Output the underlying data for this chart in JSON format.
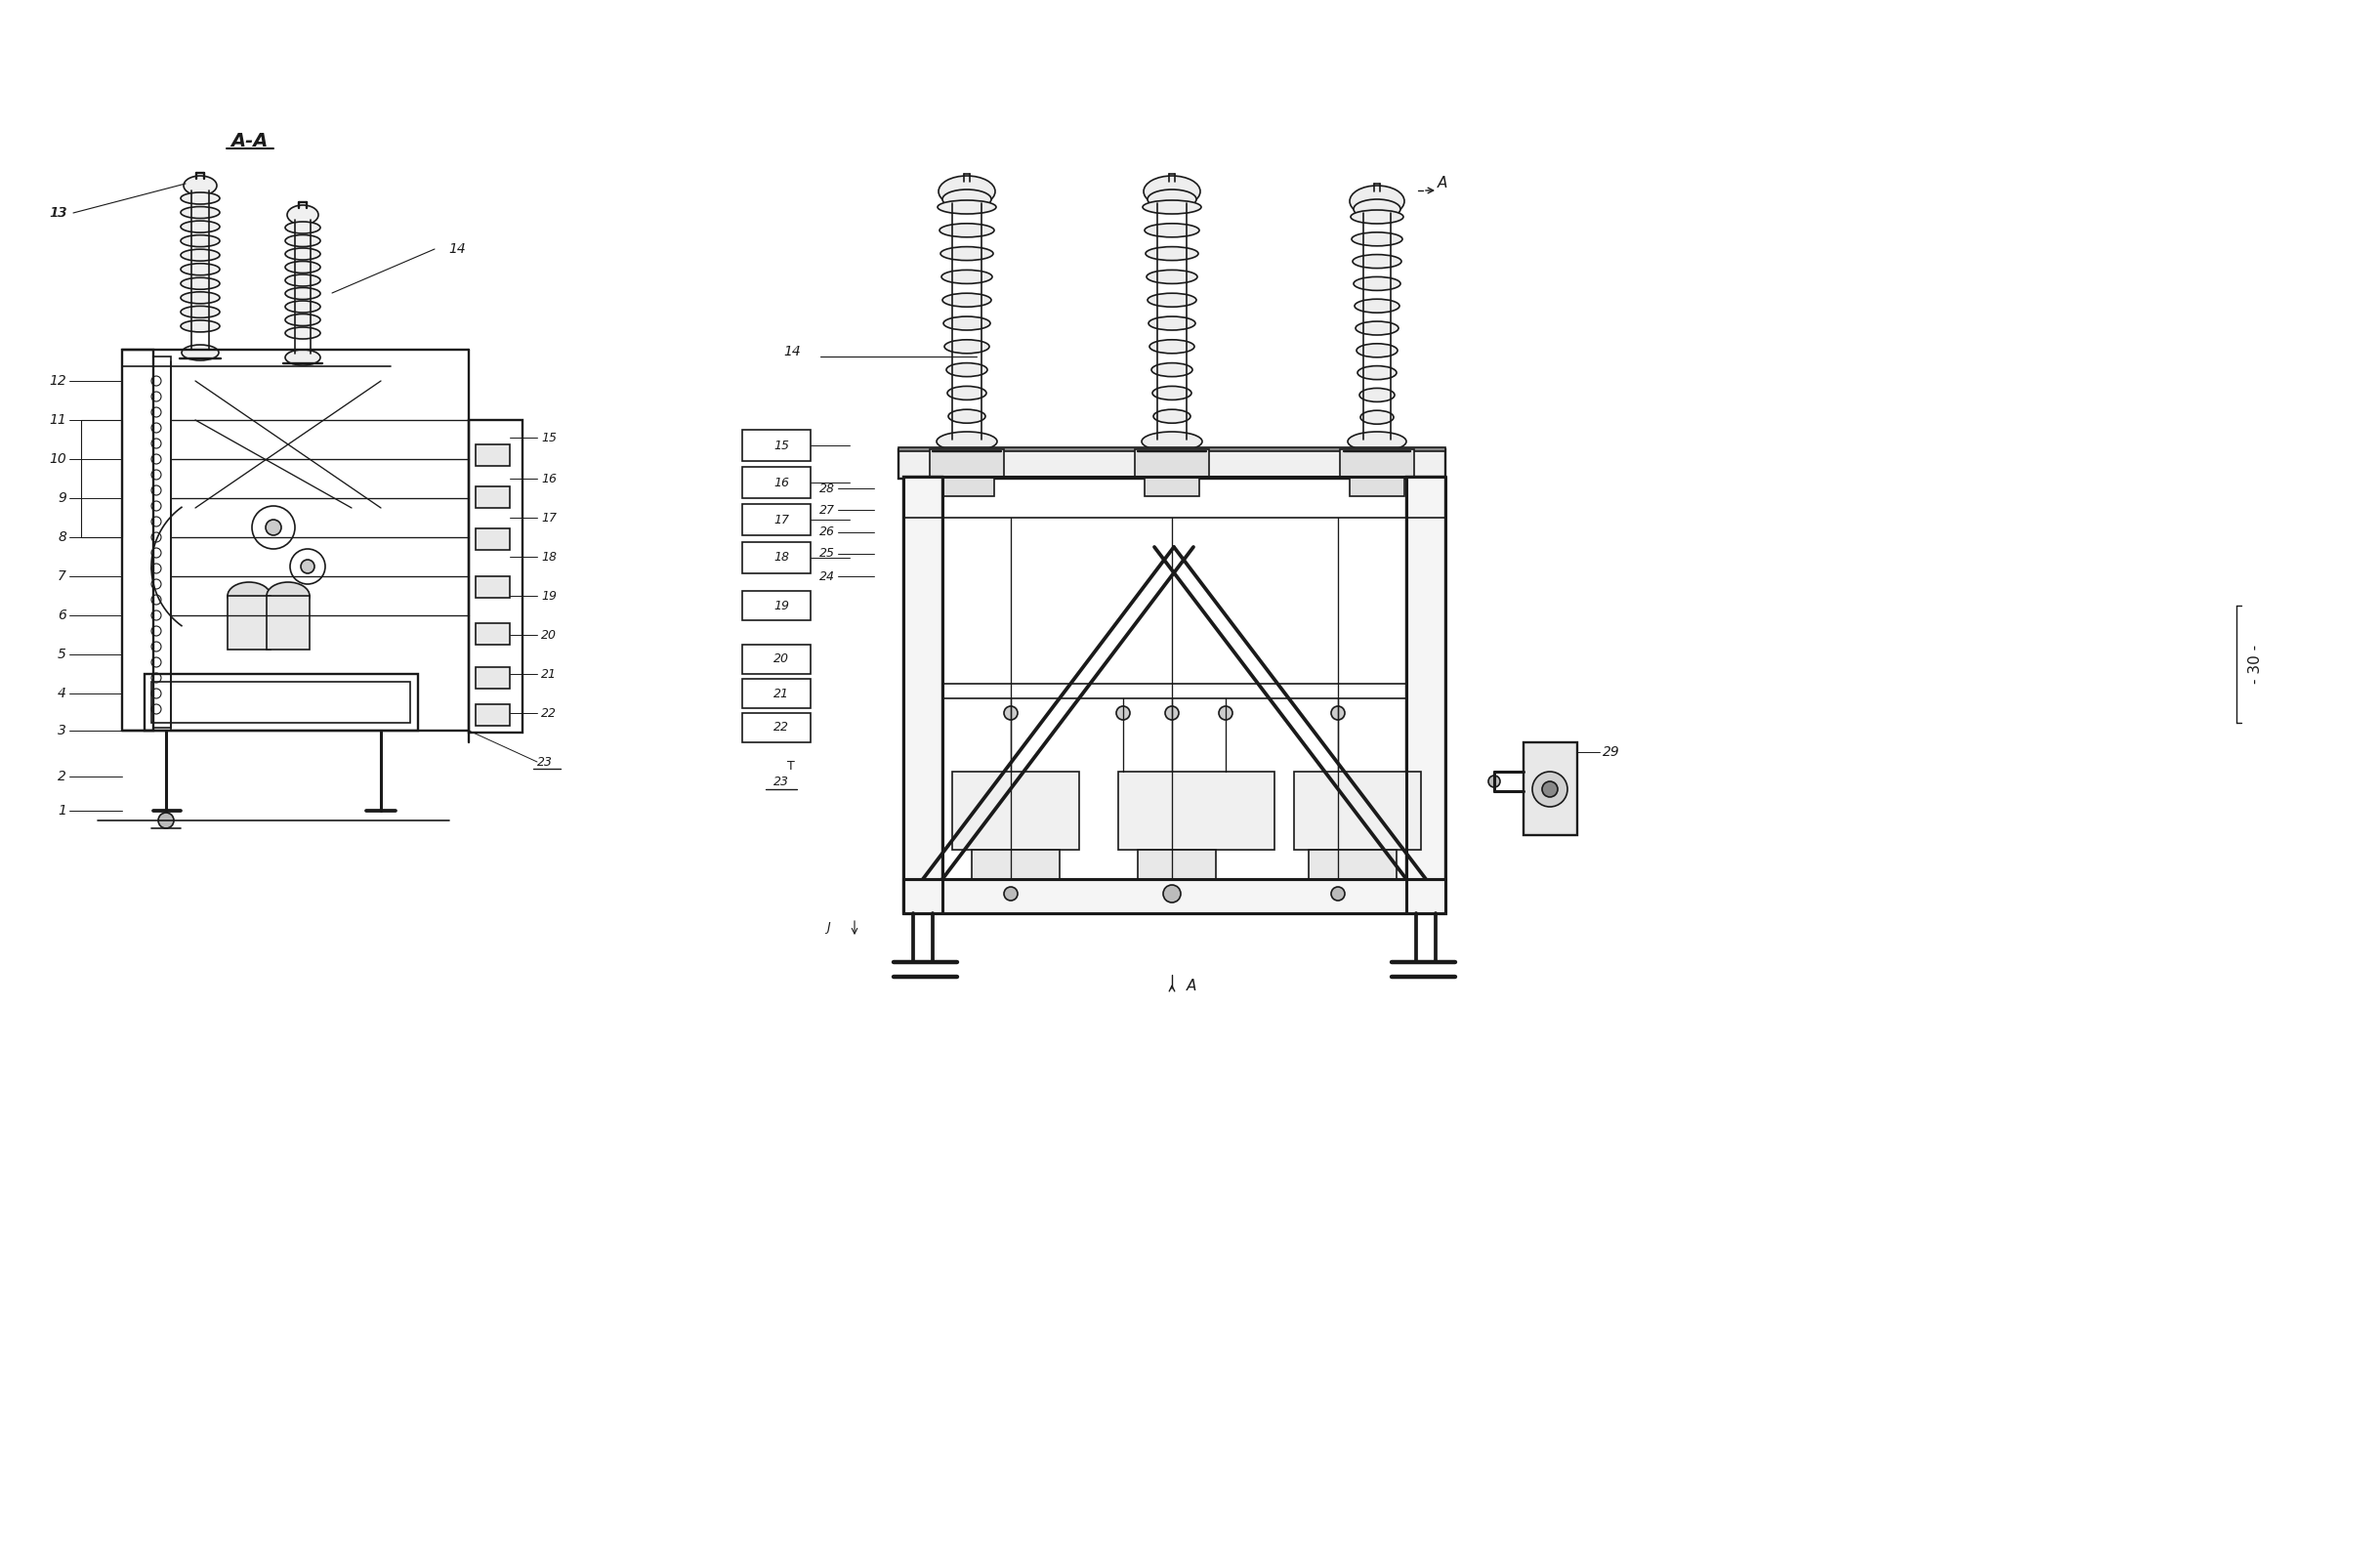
{
  "background_color": "#ffffff",
  "line_color": "#1a1a1a",
  "lw": 1.2,
  "figure_width": 24.37,
  "figure_height": 15.91,
  "left_labels": [
    "1",
    "2",
    "3",
    "4",
    "5",
    "6",
    "7",
    "8",
    "9",
    "10",
    "11",
    "12",
    "13"
  ],
  "right_labels_mid": [
    "28",
    "27",
    "26",
    "25",
    "24"
  ],
  "right_labels_box": [
    "19",
    "20",
    "21",
    "22"
  ],
  "label_AA": "A-A",
  "label_A": "A",
  "label_14": "14",
  "label_15": "15",
  "label_16": "16",
  "label_17": "17",
  "label_18": "18",
  "label_23": "23",
  "label_29": "29",
  "label_30": "- 30 -"
}
